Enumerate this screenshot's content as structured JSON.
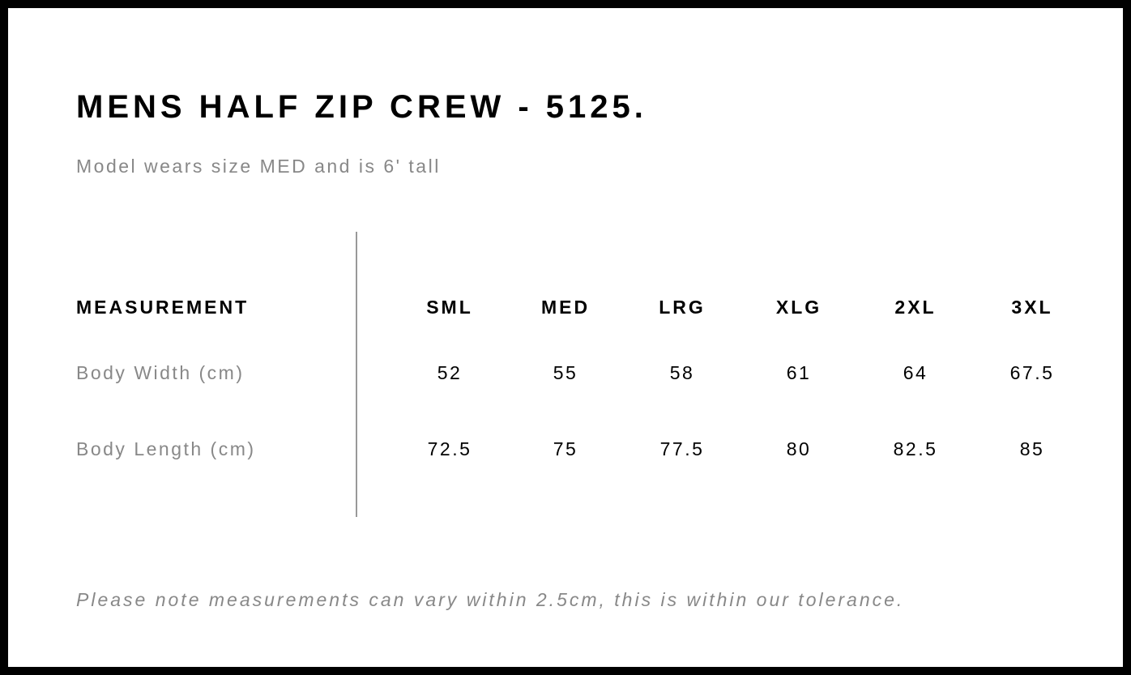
{
  "title": "MENS HALF ZIP CREW - 5125.",
  "subtitle": "Model wears size MED and is 6' tall",
  "table": {
    "header": "MEASUREMENT",
    "sizes": [
      "SML",
      "MED",
      "LRG",
      "XLG",
      "2XL",
      "3XL"
    ],
    "rows": [
      {
        "label": "Body Width (cm)",
        "values": [
          "52",
          "55",
          "58",
          "61",
          "64",
          "67.5"
        ]
      },
      {
        "label": "Body Length (cm)",
        "values": [
          "72.5",
          "75",
          "77.5",
          "80",
          "82.5",
          "85"
        ]
      }
    ]
  },
  "note": "Please note measurements can vary within 2.5cm, this is within our tolerance."
}
